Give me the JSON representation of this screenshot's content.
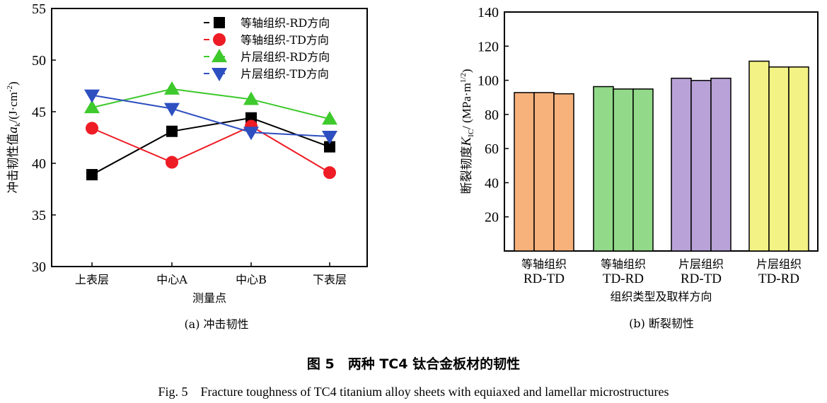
{
  "chart_data": [
    {
      "type": "line",
      "panel_caption": "(a) 冲击韧性",
      "xlabel": "测量点",
      "ylabel_main": "冲击韧性值",
      "ylabel_sym": "a",
      "ylabel_sub": "k",
      "ylabel_unit": "/(J·cm",
      "ylabel_exp": "-2",
      "ylabel_end": ")",
      "categories": [
        "上表层",
        "中心A",
        "中心B",
        "下表层"
      ],
      "ylim": [
        30,
        55
      ],
      "yticks": [
        30,
        35,
        40,
        45,
        50,
        55
      ],
      "legend": "top-right",
      "grid": false,
      "series": [
        {
          "name": "等轴组织-RD方向",
          "color": "#000000",
          "marker": "square",
          "values": [
            38.9,
            43.1,
            44.4,
            41.6
          ]
        },
        {
          "name": "等轴组织-TD方向",
          "color": "#ee1c25",
          "marker": "circle",
          "values": [
            43.4,
            40.1,
            43.6,
            39.1
          ]
        },
        {
          "name": "片层组织-RD方向",
          "color": "#3ec92c",
          "marker": "triangle-up",
          "values": [
            45.4,
            47.2,
            46.2,
            44.3
          ]
        },
        {
          "name": "片层组织-TD方向",
          "color": "#2e4fc0",
          "marker": "triangle-down",
          "values": [
            46.6,
            45.3,
            43.0,
            42.6
          ]
        }
      ]
    },
    {
      "type": "bar",
      "panel_caption": "(b) 断裂韧性",
      "xlabel": "组织类型及取样方向",
      "ylabel_main": "断裂韧度",
      "ylabel_sym": "K",
      "ylabel_sub": "IC",
      "ylabel_unit": "/ (MPa·m",
      "ylabel_exp": "1/2",
      "ylabel_end": ")",
      "ylim": [
        0,
        140
      ],
      "yticks": [
        20,
        40,
        60,
        80,
        100,
        120,
        140
      ],
      "grid": false,
      "groups": [
        {
          "label1": "等轴组织",
          "label2": "RD-TD",
          "color": "#f7b27c",
          "values": [
            92.8,
            92.8,
            92.1
          ]
        },
        {
          "label1": "等轴组织",
          "label2": "TD-RD",
          "color": "#92d98a",
          "values": [
            96.3,
            94.9,
            94.9
          ]
        },
        {
          "label1": "片层组织",
          "label2": "RD-TD",
          "color": "#b9a2d8",
          "values": [
            101.2,
            99.9,
            101.2
          ]
        },
        {
          "label1": "片层组织",
          "label2": "TD-RD",
          "color": "#f3f385",
          "values": [
            111.2,
            107.8,
            107.8
          ]
        }
      ]
    }
  ],
  "figure": {
    "title_cn": "图 5　两种 TC4 钛合金板材的韧性",
    "title_en": "Fig. 5　Fracture toughness of TC4 titanium alloy sheets with equiaxed and lamellar microstructures"
  }
}
